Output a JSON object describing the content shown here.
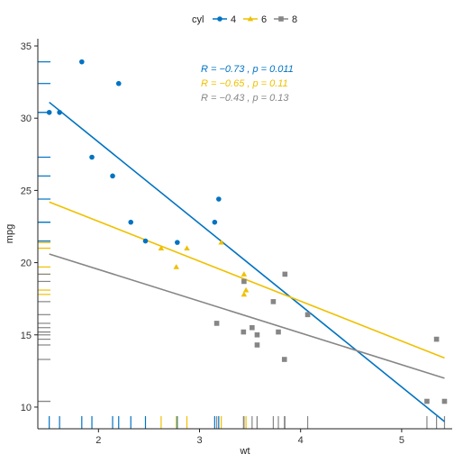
{
  "chart_data": {
    "type": "scatter",
    "title": "",
    "xlabel": "wt",
    "ylabel": "mpg",
    "xlim": [
      1.4,
      5.5
    ],
    "ylim": [
      8.5,
      35.5
    ],
    "x_ticks": [
      2,
      3,
      4,
      5
    ],
    "y_ticks": [
      10,
      15,
      20,
      25,
      30,
      35
    ],
    "grid": false,
    "rug": true,
    "legend": {
      "title": "cyl",
      "placement": "top",
      "entries": [
        {
          "label": "4",
          "color": "#0073C2",
          "shape": "circle"
        },
        {
          "label": "6",
          "color": "#EFC000",
          "shape": "triangle"
        },
        {
          "label": "8",
          "color": "#868686",
          "shape": "square"
        }
      ]
    },
    "annotations": [
      {
        "text": "R = −0.73 , p = 0.011",
        "color": "#0073C2"
      },
      {
        "text": "R = −0.65 , p = 0.11",
        "color": "#EFC000"
      },
      {
        "text": "R = −0.43 , p = 0.13",
        "color": "#868686"
      }
    ],
    "series": [
      {
        "name": "4",
        "color": "#0073C2",
        "shape": "circle",
        "points": [
          [
            2.32,
            22.8
          ],
          [
            3.19,
            24.4
          ],
          [
            3.15,
            22.8
          ],
          [
            2.2,
            32.4
          ],
          [
            1.615,
            30.4
          ],
          [
            1.835,
            33.9
          ],
          [
            2.465,
            21.5
          ],
          [
            1.935,
            27.3
          ],
          [
            2.14,
            26.0
          ],
          [
            1.513,
            30.4
          ],
          [
            2.78,
            21.4
          ]
        ],
        "fit": [
          [
            1.513,
            31.1
          ],
          [
            5.424,
            9.0
          ]
        ]
      },
      {
        "name": "6",
        "color": "#EFC000",
        "shape": "triangle",
        "points": [
          [
            2.62,
            21.0
          ],
          [
            2.875,
            21.0
          ],
          [
            3.215,
            21.4
          ],
          [
            3.44,
            19.2
          ],
          [
            3.44,
            17.8
          ],
          [
            3.46,
            18.1
          ],
          [
            2.77,
            19.7
          ]
        ],
        "fit": [
          [
            1.513,
            24.2
          ],
          [
            5.424,
            13.4
          ]
        ]
      },
      {
        "name": "8",
        "color": "#868686",
        "shape": "square",
        "points": [
          [
            3.44,
            18.7
          ],
          [
            3.57,
            14.3
          ],
          [
            4.07,
            16.4
          ],
          [
            3.73,
            17.3
          ],
          [
            3.78,
            15.2
          ],
          [
            5.25,
            10.4
          ],
          [
            5.424,
            10.4
          ],
          [
            5.345,
            14.7
          ],
          [
            3.52,
            15.5
          ],
          [
            3.435,
            15.2
          ],
          [
            3.84,
            13.3
          ],
          [
            3.845,
            19.2
          ],
          [
            3.17,
            15.8
          ],
          [
            3.57,
            15.0
          ]
        ],
        "fit": [
          [
            1.513,
            20.6
          ],
          [
            5.424,
            12.0
          ]
        ]
      }
    ]
  }
}
